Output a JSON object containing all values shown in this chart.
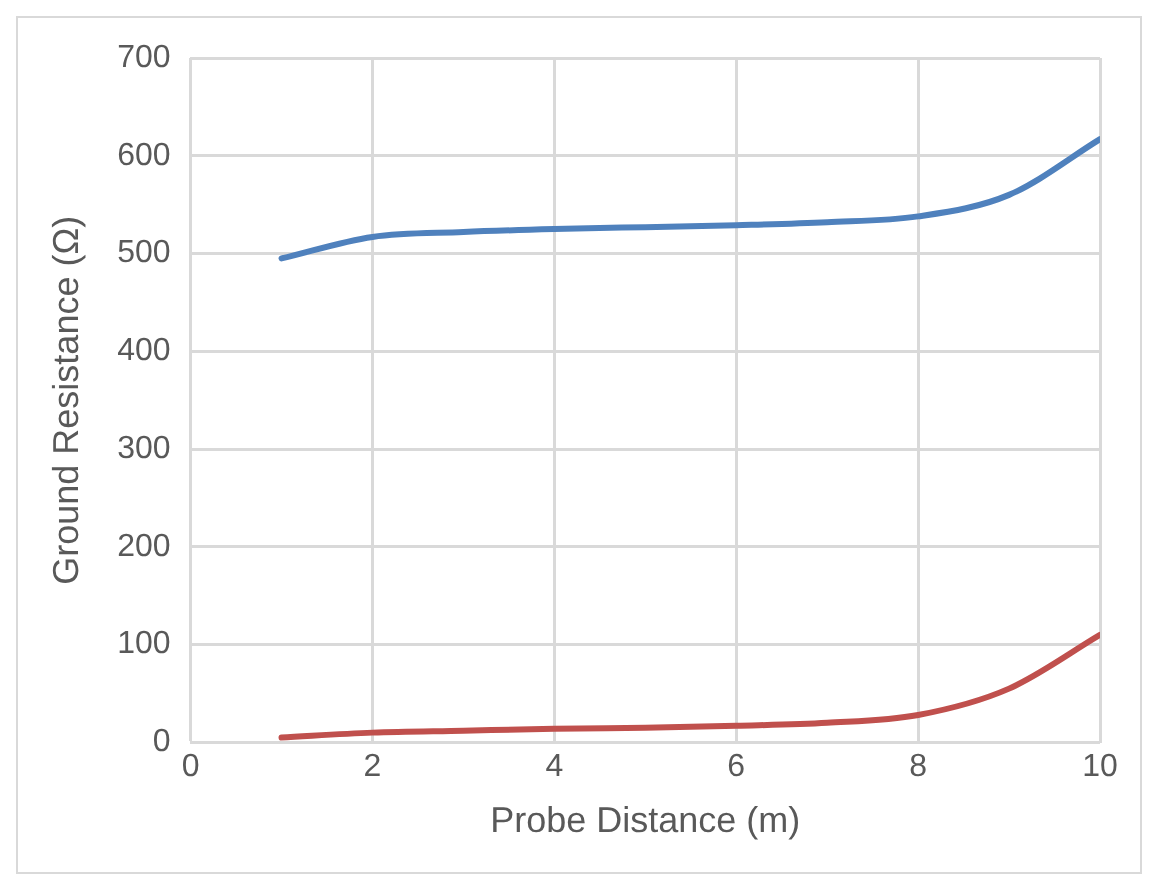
{
  "chart_data": {
    "type": "line",
    "xlabel": "Probe Distance (m)",
    "ylabel": "Ground Resistance (Ω)",
    "x": [
      1,
      2,
      3,
      4,
      5,
      6,
      7,
      8,
      9,
      10
    ],
    "series": [
      {
        "color": "#4f81bd",
        "values": [
          495,
          517,
          522,
          525,
          527,
          529,
          532,
          538,
          560,
          617
        ]
      },
      {
        "color": "#c0504d",
        "values": [
          5,
          10,
          12,
          14,
          15,
          17,
          20,
          28,
          55,
          110
        ]
      }
    ],
    "xlim": [
      0,
      10
    ],
    "xticks": [
      0,
      2,
      4,
      6,
      8,
      10
    ],
    "ylim": [
      0,
      700
    ],
    "yticks": [
      0,
      100,
      200,
      300,
      400,
      500,
      600,
      700
    ],
    "grid": true,
    "legend": false,
    "marker": "none",
    "line_style": "solid"
  }
}
